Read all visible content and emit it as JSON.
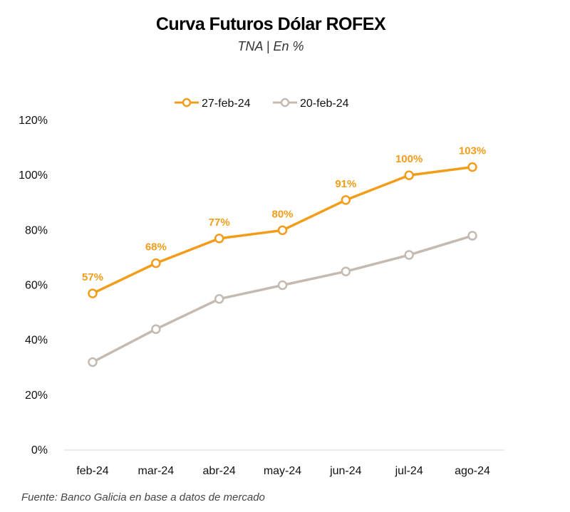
{
  "title": "Curva Futuros Dólar ROFEX",
  "subtitle": "TNA | En %",
  "source": "Fuente: Banco Galicia en base a datos de mercado",
  "chart_data": {
    "type": "line",
    "title": "Curva Futuros Dólar ROFEX",
    "subtitle": "TNA | En %",
    "xlabel": "",
    "ylabel": "",
    "categories": [
      "feb-24",
      "mar-24",
      "abr-24",
      "may-24",
      "jun-24",
      "jul-24",
      "ago-24"
    ],
    "ylim": [
      0,
      120
    ],
    "yticks": [
      0,
      20,
      40,
      60,
      80,
      100,
      120
    ],
    "ytick_labels": [
      "0%",
      "20%",
      "40%",
      "60%",
      "80%",
      "100%",
      "120%"
    ],
    "grid": false,
    "legend": "top-center",
    "series": [
      {
        "name": "27-feb-24",
        "color": "#F39C1A",
        "values": [
          57,
          68,
          77,
          80,
          91,
          100,
          103
        ],
        "data_labels": [
          "57%",
          "68%",
          "77%",
          "80%",
          "91%",
          "100%",
          "103%"
        ]
      },
      {
        "name": "20-feb-24",
        "color": "#C4BAB2",
        "values": [
          32,
          44,
          55,
          60,
          65,
          71,
          78
        ]
      }
    ]
  }
}
